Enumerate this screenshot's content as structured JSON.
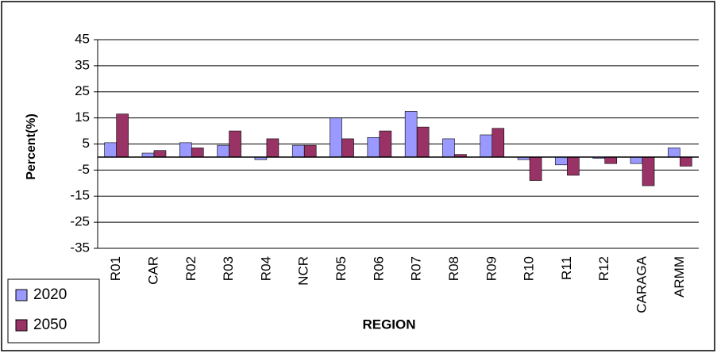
{
  "chart_data": {
    "type": "bar",
    "xlabel": "REGION",
    "ylabel": "Percent(%)",
    "categories": [
      "R01",
      "CAR",
      "R02",
      "R03",
      "R04",
      "NCR",
      "R05",
      "R06",
      "R07",
      "R08",
      "R09",
      "R10",
      "R11",
      "R12",
      "CARAGA",
      "ARMM"
    ],
    "series": [
      {
        "name": "2020",
        "color": "#9999ff",
        "values": [
          5.5,
          1.5,
          5.5,
          4.5,
          -1,
          4.5,
          15,
          7.5,
          17.5,
          7,
          8.5,
          -1,
          -3,
          -0.5,
          -2.5,
          3.5
        ]
      },
      {
        "name": "2050",
        "color": "#993366",
        "values": [
          16.5,
          2.5,
          3.5,
          10,
          7,
          4.5,
          7,
          10,
          11.5,
          1,
          11,
          -9,
          -7,
          -2.5,
          -11,
          -3.5
        ]
      }
    ],
    "ylim": [
      -35,
      45
    ],
    "yticks": [
      -35,
      -25,
      -15,
      -5,
      5,
      15,
      25,
      35,
      45
    ],
    "grid": true,
    "legend": "bottom-left"
  }
}
